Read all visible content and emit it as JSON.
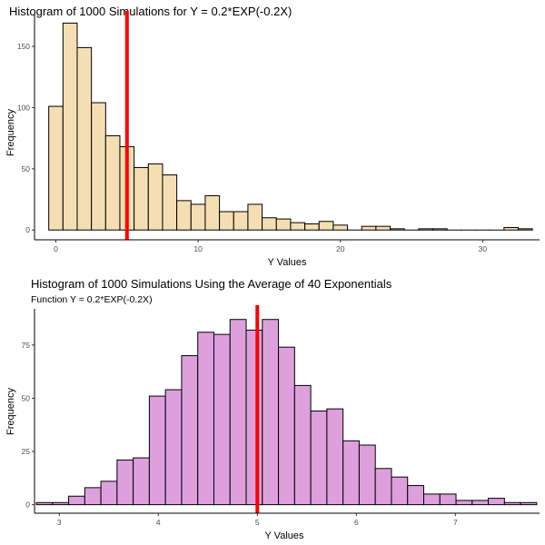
{
  "chart_data": [
    {
      "type": "bar",
      "title": "Histogram of 1000 Simulations for Y = 0.2*EXP(-0.2X)",
      "subtitle": "",
      "xlabel": "Y Values",
      "ylabel": "Frequency",
      "fill_color": "#F5DEB3",
      "line_color": "#FF0000",
      "vline": 5,
      "xlim": [
        -1.5,
        34
      ],
      "ylim": [
        -8,
        176
      ],
      "x_ticks": [
        0,
        10,
        20,
        30
      ],
      "y_ticks": [
        0,
        50,
        100,
        150
      ],
      "bin_width": 1,
      "bin_centers": [
        0,
        1,
        2,
        3,
        4,
        5,
        6,
        7,
        8,
        9,
        10,
        11,
        12,
        13,
        14,
        15,
        16,
        17,
        18,
        19,
        20,
        21,
        22,
        23,
        24,
        25,
        26,
        27,
        28,
        29,
        30,
        31,
        32,
        33
      ],
      "values": [
        101,
        169,
        149,
        104,
        77,
        68,
        51,
        54,
        45,
        24,
        21,
        28,
        15,
        15,
        21,
        10,
        9,
        6,
        5,
        7,
        4,
        0,
        3,
        3,
        1,
        0,
        1,
        1,
        0,
        0,
        0,
        0,
        2,
        1
      ]
    },
    {
      "type": "bar",
      "title": "Histogram of 1000 Simulations Using the Average of 40 Exponentials",
      "subtitle": "Function Y = 0.2*EXP(-0.2X)",
      "xlabel": "Y Values",
      "ylabel": "Frequency",
      "fill_color": "#DDA0DD",
      "line_color": "#FF0000",
      "vline": 5,
      "xlim": [
        2.75,
        7.85
      ],
      "ylim": [
        -4,
        92
      ],
      "x_ticks": [
        3,
        4,
        5,
        6,
        7
      ],
      "y_ticks": [
        0,
        25,
        50,
        75
      ],
      "bin_width": 0.163,
      "bin_centers": [
        2.85,
        3.013,
        3.176,
        3.339,
        3.502,
        3.665,
        3.828,
        3.991,
        4.154,
        4.317,
        4.48,
        4.643,
        4.806,
        4.969,
        5.132,
        5.295,
        5.458,
        5.621,
        5.784,
        5.947,
        6.11,
        6.273,
        6.436,
        6.599,
        6.762,
        6.925,
        7.088,
        7.251,
        7.414,
        7.577,
        7.74
      ],
      "values": [
        1,
        1,
        4,
        8,
        11,
        21,
        22,
        51,
        54,
        70,
        81,
        80,
        87,
        82,
        87,
        74,
        56,
        44,
        45,
        30,
        28,
        17,
        13,
        9,
        5,
        5,
        2,
        2,
        3,
        1,
        1
      ]
    }
  ]
}
